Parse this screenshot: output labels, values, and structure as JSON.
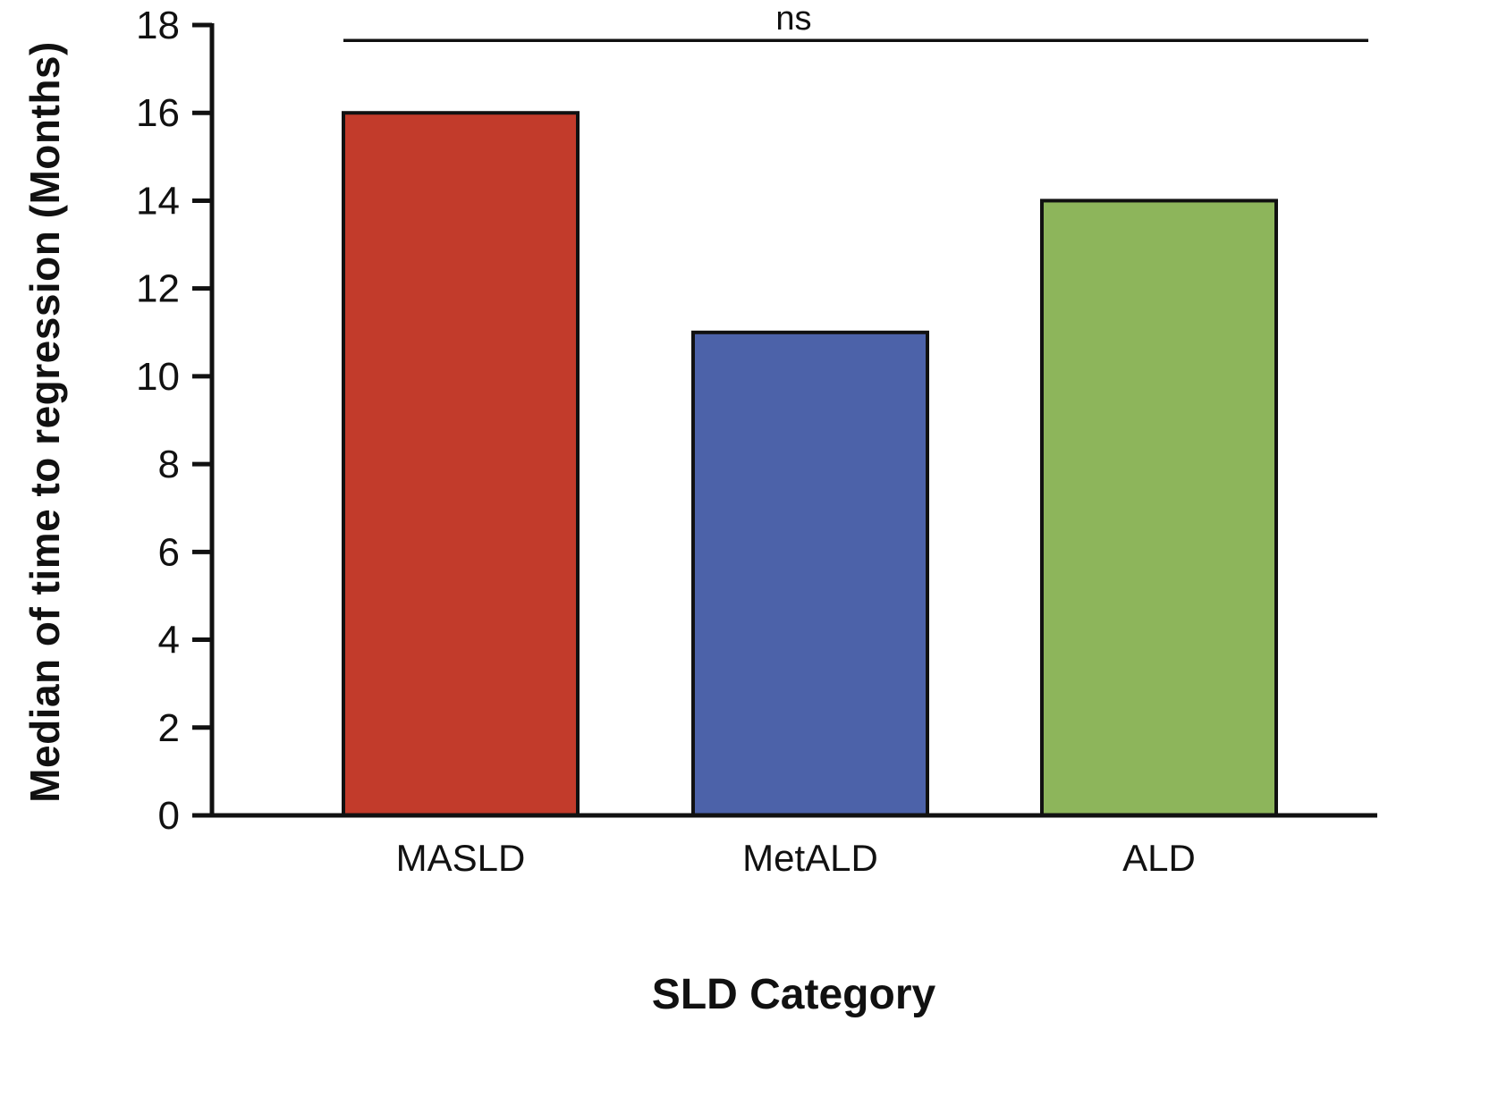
{
  "chart_data": {
    "type": "bar",
    "categories": [
      "MASLD",
      "MetALD",
      "ALD"
    ],
    "values": [
      16,
      11,
      14
    ],
    "colors": [
      "#C23B2B",
      "#4C62A9",
      "#8DB55B"
    ],
    "bar_border_color": "#111111",
    "title": "",
    "xlabel": "SLD Category",
    "ylabel": "Median of time to regression (Months)",
    "ylim": [
      0,
      18
    ],
    "ytick_step": 2,
    "grid": false,
    "legend": "none",
    "annotation": {
      "label": "ns",
      "y_value": 17.65,
      "spans_categories": [
        "MASLD",
        "ALD"
      ]
    }
  }
}
